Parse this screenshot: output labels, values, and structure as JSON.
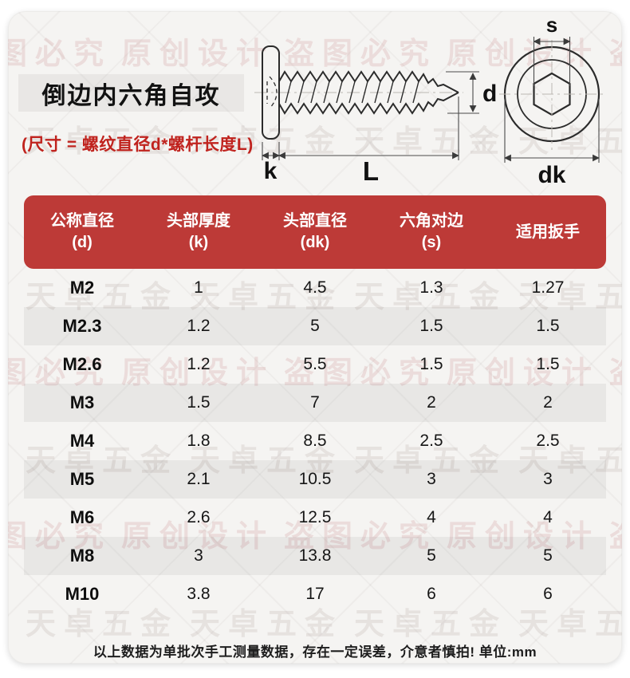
{
  "title": "倒边内六角自攻",
  "subtitle": "(尺寸 = 螺纹直径d*螺杆长度L)",
  "diagram": {
    "labels": {
      "k": "k",
      "L": "L",
      "d": "d",
      "s": "s",
      "dk": "dk"
    }
  },
  "table": {
    "headers": [
      {
        "line1": "公称直径",
        "line2": "(d)"
      },
      {
        "line1": "头部厚度",
        "line2": "(k)"
      },
      {
        "line1": "头部直径",
        "line2": "(dk)"
      },
      {
        "line1": "六角对边",
        "line2": "(s)"
      },
      {
        "line1": "适用扳手",
        "line2": ""
      }
    ],
    "rows": [
      [
        "M2",
        "1",
        "4.5",
        "1.3",
        "1.27"
      ],
      [
        "M2.3",
        "1.2",
        "5",
        "1.5",
        "1.5"
      ],
      [
        "M2.6",
        "1.2",
        "5.5",
        "1.5",
        "1.5"
      ],
      [
        "M3",
        "1.5",
        "7",
        "2",
        "2"
      ],
      [
        "M4",
        "1.8",
        "8.5",
        "2.5",
        "2.5"
      ],
      [
        "M5",
        "2.1",
        "10.5",
        "3",
        "3"
      ],
      [
        "M6",
        "2.6",
        "12.5",
        "4",
        "4"
      ],
      [
        "M8",
        "3",
        "13.8",
        "5",
        "5"
      ],
      [
        "M10",
        "3.8",
        "17",
        "6",
        "6"
      ]
    ]
  },
  "footnote": "以上数据为单批次手工测量数据，存在一定误差，介意者慎拍! 单位:mm",
  "watermarks": [
    "天卓五金",
    "原创设计",
    "盗图必究"
  ],
  "colors": {
    "header_red": "#bd3a37",
    "accent_red": "#c0231e",
    "card_bg": "#f5f4f2",
    "stripe": "#e9e8e6",
    "title_box_bg": "#e8e7e4"
  }
}
